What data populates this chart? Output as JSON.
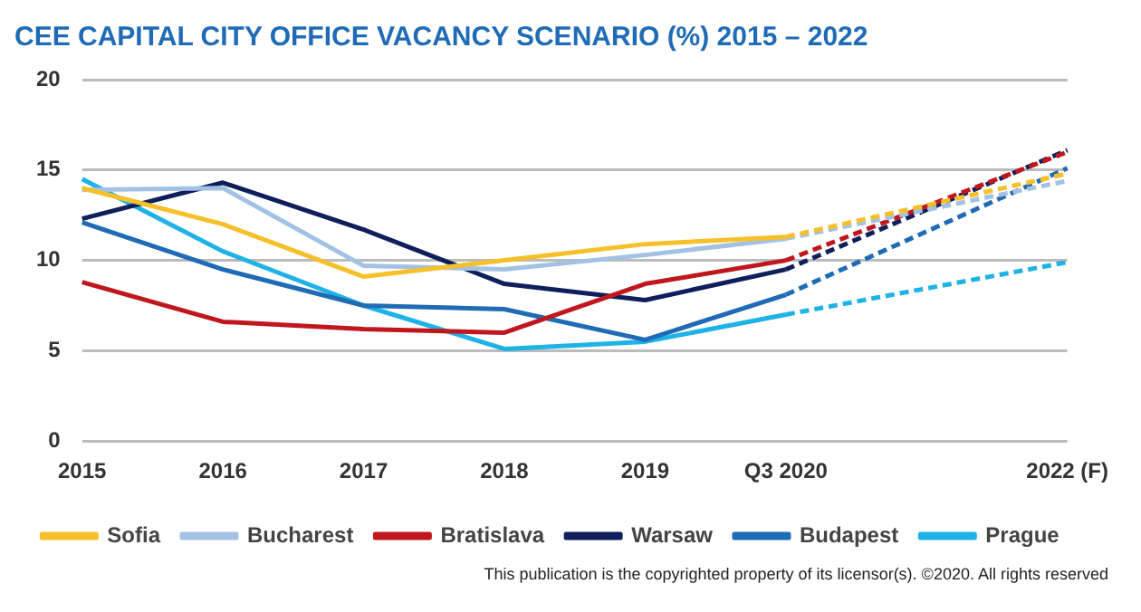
{
  "chart_data": {
    "type": "line",
    "title": "CEE CAPITAL CITY OFFICE VACANCY SCENARIO (%) 2015 – 2022",
    "categories": [
      "2015",
      "2016",
      "2017",
      "2018",
      "2019",
      "Q3 2020",
      null,
      "2022 (F)"
    ],
    "series": [
      {
        "name": "Sofia",
        "color": "#f5c02a",
        "values": [
          14.0,
          12.0,
          9.1,
          10.0,
          10.9,
          11.3,
          null,
          null
        ]
      },
      {
        "name": "Bucharest",
        "color": "#a3c2e3",
        "values": [
          13.9,
          14.0,
          9.7,
          9.5,
          10.3,
          11.2,
          null,
          null
        ]
      },
      {
        "name": "Bratislava",
        "color": "#c0171f",
        "values": [
          8.8,
          6.6,
          6.2,
          6.0,
          8.7,
          10.0,
          null,
          null
        ]
      },
      {
        "name": "Warsaw",
        "color": "#0e1f5b",
        "values": [
          12.3,
          14.3,
          11.7,
          8.7,
          7.8,
          9.5,
          null,
          null
        ]
      },
      {
        "name": "Budapest",
        "color": "#1f6bb5",
        "values": [
          12.1,
          9.5,
          7.5,
          7.3,
          5.6,
          8.1,
          null,
          null
        ]
      },
      {
        "name": "Prague",
        "color": "#1fb2e6",
        "values": [
          14.5,
          10.5,
          7.5,
          5.1,
          5.5,
          7.0,
          null,
          null
        ]
      },
      {
        "color": "#f5c02a",
        "line_style": "dashed",
        "values": [
          null,
          null,
          null,
          null,
          null,
          11.3,
          null,
          14.8
        ]
      },
      {
        "color": "#a3c2e3",
        "line_style": "dashed",
        "values": [
          null,
          null,
          null,
          null,
          null,
          11.2,
          null,
          14.4
        ]
      },
      {
        "color": "#c0171f",
        "line_style": "dashed",
        "values": [
          null,
          null,
          null,
          null,
          null,
          10.0,
          null,
          16.0
        ]
      },
      {
        "color": "#0e1f5b",
        "line_style": "dashed",
        "values": [
          null,
          null,
          null,
          null,
          null,
          9.5,
          null,
          16.1
        ]
      },
      {
        "color": "#1f6bb5",
        "line_style": "dashed",
        "values": [
          null,
          null,
          null,
          null,
          null,
          8.1,
          null,
          15.1
        ]
      },
      {
        "color": "#1fb2e6",
        "line_style": "dashed",
        "values": [
          null,
          null,
          null,
          null,
          null,
          7.0,
          null,
          9.9
        ]
      }
    ],
    "ylim": [
      0,
      20
    ],
    "yticks": [
      0,
      5,
      10,
      15,
      20
    ],
    "grid": "y",
    "legend": "bottom",
    "marker": "none",
    "line_style": "solid",
    "annotations": [
      "This publication is the copyrighted property of its licensor(s). ©2020. All rights reserved"
    ]
  }
}
